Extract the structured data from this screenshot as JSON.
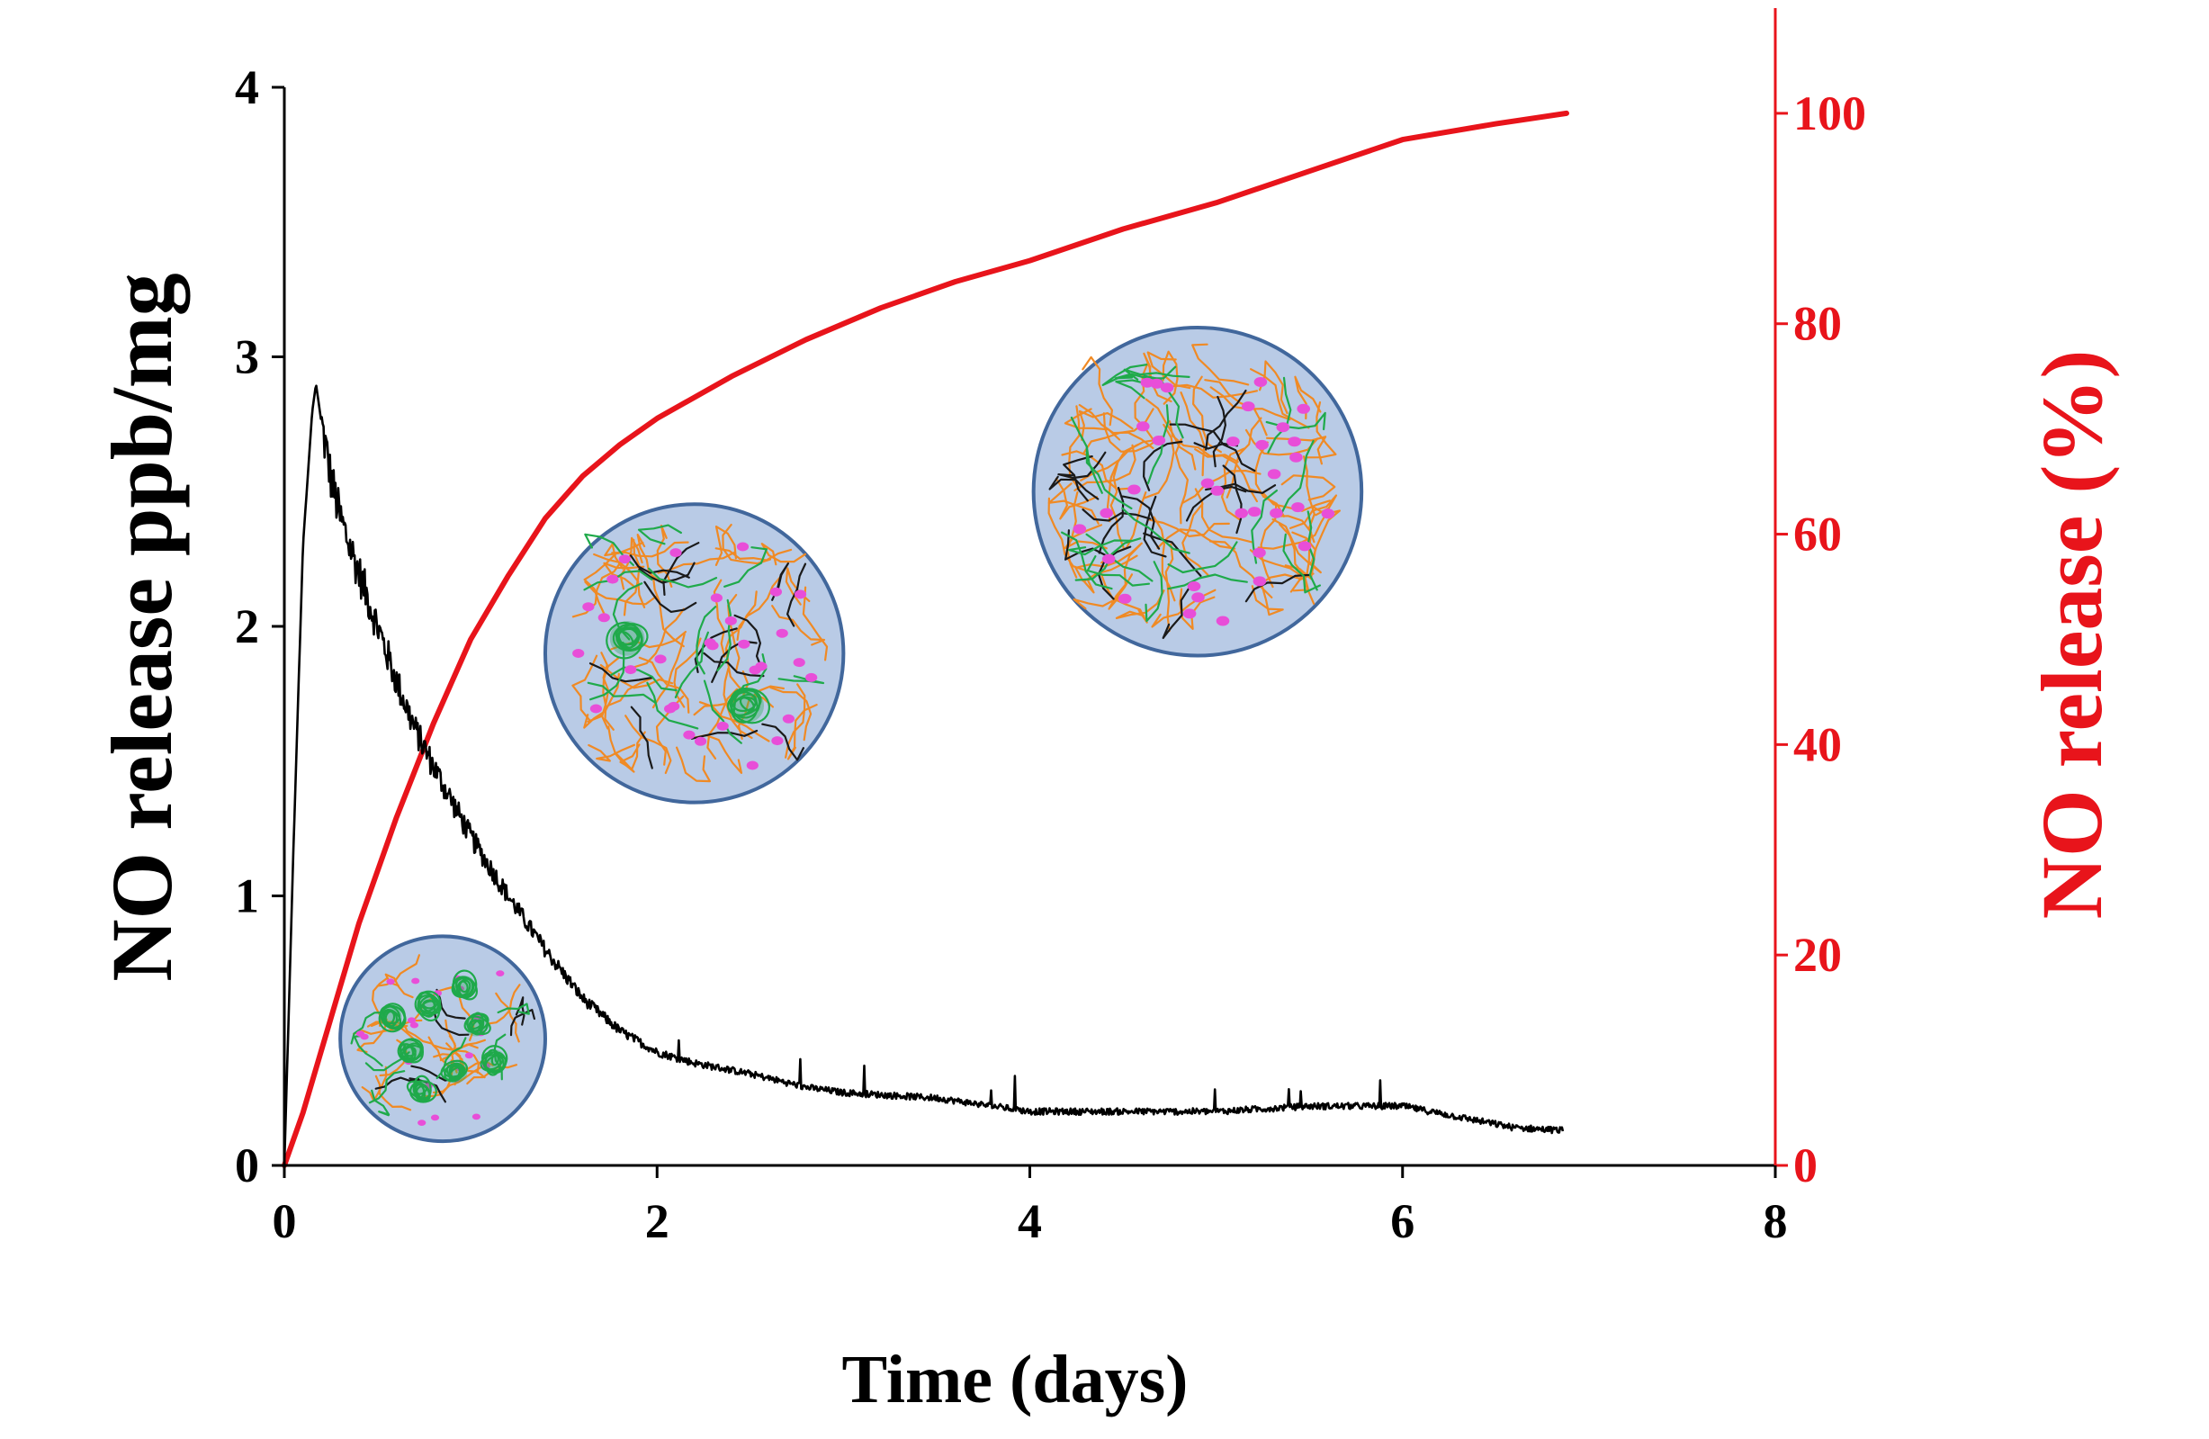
{
  "chart_data": {
    "type": "line",
    "xlabel": "Time (days)",
    "ylabel": "NO release ppb/mg",
    "y2label": "NO release (%)",
    "xlim": [
      0,
      8
    ],
    "ylim": [
      0,
      4
    ],
    "y2lim": [
      0,
      110
    ],
    "xticks": [
      0,
      2,
      4,
      6,
      8
    ],
    "yticks": [
      0,
      1,
      2,
      3,
      4
    ],
    "y2ticks": [
      0,
      20,
      40,
      60,
      80,
      100
    ],
    "colors": {
      "left_axis": "#000000",
      "right_axis": "#e8141b",
      "series_rate": "#000000",
      "series_cumulative": "#e8141b",
      "particle_fill": "#b9cbe6",
      "particle_border": "#41679c",
      "chain_orange": "#f08a24",
      "chain_green": "#1faa4a",
      "chain_black": "#1a1a1a",
      "dot_magenta": "#e84ed8"
    },
    "series": [
      {
        "name": "NO release ppb/mg",
        "axis": "left",
        "noisy": true,
        "x": [
          0,
          0.05,
          0.1,
          0.15,
          0.17,
          0.2,
          0.25,
          0.3,
          0.4,
          0.5,
          0.6,
          0.7,
          0.8,
          0.9,
          1.0,
          1.2,
          1.4,
          1.6,
          1.8,
          2.0,
          2.2,
          2.5,
          2.8,
          3.0,
          3.5,
          4.0,
          4.5,
          5.0,
          5.5,
          6.0,
          6.3,
          6.6,
          6.86
        ],
        "values": [
          0,
          1.2,
          2.3,
          2.8,
          2.9,
          2.75,
          2.55,
          2.4,
          2.2,
          2.0,
          1.8,
          1.62,
          1.48,
          1.35,
          1.22,
          1.0,
          0.8,
          0.62,
          0.5,
          0.42,
          0.38,
          0.34,
          0.29,
          0.27,
          0.25,
          0.2,
          0.2,
          0.2,
          0.22,
          0.22,
          0.18,
          0.14,
          0.13
        ]
      },
      {
        "name": "NO release (%)",
        "axis": "right",
        "noisy": false,
        "x": [
          0,
          0.1,
          0.2,
          0.3,
          0.4,
          0.5,
          0.6,
          0.7,
          0.8,
          0.9,
          1.0,
          1.2,
          1.4,
          1.6,
          1.8,
          2.0,
          2.4,
          2.8,
          3.2,
          3.6,
          4.0,
          4.5,
          5.0,
          5.5,
          6.0,
          6.5,
          6.88
        ],
        "values": [
          0,
          5,
          11,
          17,
          23,
          28,
          33,
          37.5,
          42,
          46,
          50,
          56,
          61.5,
          65.5,
          68.5,
          71,
          75,
          78.5,
          81.5,
          84,
          86,
          89,
          91.5,
          94.5,
          97.5,
          99,
          100
        ]
      }
    ],
    "insets": [
      {
        "name": "small-particle",
        "center": [
          0.85,
          0.47
        ],
        "radius_days": 0.55,
        "aggregates": 8,
        "style": "dense"
      },
      {
        "name": "medium-particle",
        "center": [
          2.2,
          1.9
        ],
        "radius_days": 0.8,
        "aggregates": 2,
        "style": "mixed"
      },
      {
        "name": "large-particle",
        "center": [
          4.9,
          2.5
        ],
        "radius_days": 0.88,
        "aggregates": 0,
        "style": "dispersed"
      }
    ]
  }
}
